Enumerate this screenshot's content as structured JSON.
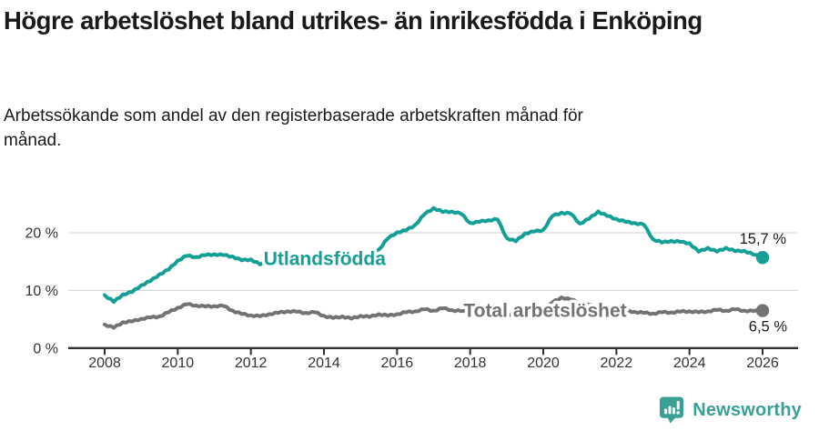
{
  "header": {
    "title": "Högre arbetslöshet bland utrikes- än inrikesfödda i Enköping",
    "subtitle": "Arbetssökande som andel av den registerbaserade arbetskraften månad för månad."
  },
  "chart_data": {
    "type": "line",
    "title": "Högre arbetslöshet bland utrikes- än inrikesfödda i Enköping",
    "subtitle": "Arbetssökande som andel av den registerbaserade arbetskraften månad för månad.",
    "grid": "horizontal",
    "legend": "inline-labels",
    "x_axis": {
      "ticks": [
        2008,
        2010,
        2012,
        2014,
        2016,
        2018,
        2020,
        2022,
        2024,
        2026
      ],
      "range": [
        2008,
        2026
      ]
    },
    "y_axis": {
      "ticks": [
        0,
        10,
        20
      ],
      "tick_labels": [
        "0 %",
        "10 %",
        "20 %"
      ],
      "range": [
        0,
        26
      ],
      "unit": "%"
    },
    "series": [
      {
        "name": "Utlandsfödda",
        "color": "#14a096",
        "end_label": "15,7 %",
        "end_value": 15.7,
        "label_pos": {
          "x": 2014.02,
          "y": 15.6
        },
        "points": [
          [
            2008.0,
            9.2
          ],
          [
            2008.25,
            8.0
          ],
          [
            2008.5,
            9.3
          ],
          [
            2008.75,
            9.7
          ],
          [
            2009.0,
            10.9
          ],
          [
            2009.25,
            11.6
          ],
          [
            2009.5,
            12.8
          ],
          [
            2009.75,
            13.6
          ],
          [
            2010.0,
            15.2
          ],
          [
            2010.25,
            16.0
          ],
          [
            2010.5,
            15.8
          ],
          [
            2010.75,
            16.1
          ],
          [
            2011.0,
            16.3
          ],
          [
            2011.25,
            16.1
          ],
          [
            2011.5,
            15.9
          ],
          [
            2011.75,
            15.2
          ],
          [
            2012.0,
            15.4
          ],
          [
            2012.25,
            14.5
          ],
          [
            2012.5,
            15.1
          ],
          [
            2012.75,
            15.3
          ],
          [
            2013.0,
            15.2
          ],
          [
            2013.25,
            15.0
          ],
          [
            2013.5,
            14.9
          ],
          [
            2013.75,
            14.8
          ],
          [
            2014.0,
            14.7
          ],
          [
            2014.25,
            14.9
          ],
          [
            2014.5,
            15.1
          ],
          [
            2014.75,
            15.4
          ],
          [
            2015.0,
            15.8
          ],
          [
            2015.25,
            16.4
          ],
          [
            2015.5,
            17.1
          ],
          [
            2015.75,
            19.0
          ],
          [
            2016.0,
            20.1
          ],
          [
            2016.25,
            20.4
          ],
          [
            2016.5,
            21.4
          ],
          [
            2016.75,
            23.2
          ],
          [
            2017.0,
            24.3
          ],
          [
            2017.25,
            23.6
          ],
          [
            2017.5,
            23.7
          ],
          [
            2017.75,
            23.3
          ],
          [
            2018.0,
            21.7
          ],
          [
            2018.25,
            21.9
          ],
          [
            2018.5,
            22.2
          ],
          [
            2018.75,
            22.3
          ],
          [
            2019.0,
            19.1
          ],
          [
            2019.25,
            18.5
          ],
          [
            2019.5,
            19.9
          ],
          [
            2019.75,
            20.2
          ],
          [
            2020.0,
            20.5
          ],
          [
            2020.25,
            22.9
          ],
          [
            2020.5,
            23.5
          ],
          [
            2020.75,
            23.3
          ],
          [
            2021.0,
            21.6
          ],
          [
            2021.25,
            22.4
          ],
          [
            2021.5,
            23.7
          ],
          [
            2021.75,
            22.9
          ],
          [
            2022.0,
            22.4
          ],
          [
            2022.25,
            21.9
          ],
          [
            2022.5,
            21.7
          ],
          [
            2022.75,
            21.4
          ],
          [
            2023.0,
            18.9
          ],
          [
            2023.25,
            18.3
          ],
          [
            2023.5,
            18.6
          ],
          [
            2023.75,
            18.4
          ],
          [
            2024.0,
            18.2
          ],
          [
            2024.25,
            16.7
          ],
          [
            2024.5,
            17.4
          ],
          [
            2024.75,
            16.7
          ],
          [
            2025.0,
            17.4
          ],
          [
            2025.25,
            16.8
          ],
          [
            2025.5,
            16.9
          ],
          [
            2025.75,
            16.2
          ],
          [
            2026.0,
            15.7
          ]
        ]
      },
      {
        "name": "Total arbetslöshet",
        "color": "#737373",
        "end_label": "6,5 %",
        "end_value": 6.5,
        "label_pos": {
          "x": 2020.05,
          "y": 6.6
        },
        "points": [
          [
            2008.0,
            4.1
          ],
          [
            2008.25,
            3.5
          ],
          [
            2008.5,
            4.5
          ],
          [
            2008.75,
            4.6
          ],
          [
            2009.0,
            5.1
          ],
          [
            2009.25,
            5.3
          ],
          [
            2009.5,
            5.5
          ],
          [
            2009.75,
            6.2
          ],
          [
            2010.0,
            7.0
          ],
          [
            2010.25,
            7.6
          ],
          [
            2010.5,
            7.4
          ],
          [
            2010.75,
            7.2
          ],
          [
            2011.0,
            7.3
          ],
          [
            2011.25,
            7.3
          ],
          [
            2011.5,
            6.5
          ],
          [
            2011.75,
            5.9
          ],
          [
            2012.0,
            5.7
          ],
          [
            2012.25,
            5.5
          ],
          [
            2012.5,
            5.9
          ],
          [
            2012.75,
            6.1
          ],
          [
            2013.0,
            6.4
          ],
          [
            2013.25,
            6.3
          ],
          [
            2013.5,
            6.1
          ],
          [
            2013.75,
            6.2
          ],
          [
            2014.0,
            5.6
          ],
          [
            2014.25,
            5.2
          ],
          [
            2014.5,
            5.5
          ],
          [
            2014.75,
            5.1
          ],
          [
            2015.0,
            5.6
          ],
          [
            2015.25,
            5.4
          ],
          [
            2015.5,
            5.9
          ],
          [
            2015.75,
            5.6
          ],
          [
            2016.0,
            5.9
          ],
          [
            2016.25,
            6.2
          ],
          [
            2016.5,
            6.4
          ],
          [
            2016.75,
            6.7
          ],
          [
            2017.0,
            6.5
          ],
          [
            2017.25,
            6.9
          ],
          [
            2017.5,
            6.6
          ],
          [
            2017.75,
            6.4
          ],
          [
            2018.0,
            6.2
          ],
          [
            2018.25,
            6.1
          ],
          [
            2018.5,
            6.0
          ],
          [
            2018.75,
            5.9
          ],
          [
            2019.0,
            5.8
          ],
          [
            2019.25,
            5.9
          ],
          [
            2019.5,
            6.0
          ],
          [
            2019.75,
            6.1
          ],
          [
            2020.0,
            6.4
          ],
          [
            2020.25,
            7.9
          ],
          [
            2020.5,
            8.8
          ],
          [
            2020.75,
            8.4
          ],
          [
            2021.0,
            7.9
          ],
          [
            2021.25,
            7.5
          ],
          [
            2021.5,
            7.1
          ],
          [
            2021.75,
            6.8
          ],
          [
            2022.0,
            6.6
          ],
          [
            2022.25,
            6.5
          ],
          [
            2022.5,
            6.3
          ],
          [
            2022.75,
            6.1
          ],
          [
            2023.0,
            6.0
          ],
          [
            2023.25,
            6.2
          ],
          [
            2023.5,
            6.2
          ],
          [
            2023.75,
            6.3
          ],
          [
            2024.0,
            6.4
          ],
          [
            2024.25,
            6.2
          ],
          [
            2024.5,
            6.4
          ],
          [
            2024.75,
            6.6
          ],
          [
            2025.0,
            6.5
          ],
          [
            2025.25,
            6.7
          ],
          [
            2025.5,
            6.5
          ],
          [
            2025.75,
            6.4
          ],
          [
            2026.0,
            6.5
          ]
        ]
      }
    ]
  },
  "footer": {
    "brand": "Newsworthy",
    "brand_color": "#3aa096",
    "logo_icon": "bar-chart-speech-bubble-icon"
  }
}
